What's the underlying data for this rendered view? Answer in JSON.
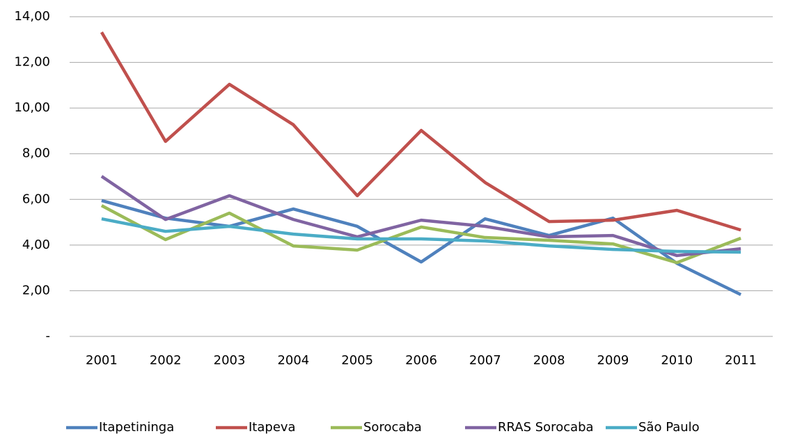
{
  "chart_data": {
    "type": "line",
    "categories": [
      "2001",
      "2002",
      "2003",
      "2004",
      "2005",
      "2006",
      "2007",
      "2008",
      "2009",
      "2010",
      "2011"
    ],
    "series": [
      {
        "name": "Itapetininga",
        "color": "#4f81bd",
        "values": [
          5.95,
          5.18,
          4.82,
          5.58,
          4.82,
          3.26,
          5.15,
          4.42,
          5.18,
          3.2,
          1.83
        ]
      },
      {
        "name": "Itapeva",
        "color": "#c0504d",
        "values": [
          13.32,
          8.54,
          11.04,
          9.27,
          6.16,
          9.02,
          6.74,
          5.03,
          5.09,
          5.52,
          4.66
        ]
      },
      {
        "name": "Sorocaba",
        "color": "#9bbb59",
        "values": [
          5.73,
          4.24,
          5.4,
          3.96,
          3.78,
          4.79,
          4.33,
          4.21,
          4.05,
          3.23,
          4.3
        ]
      },
      {
        "name": "RRAS Sorocaba",
        "color": "#8064a2",
        "values": [
          7.01,
          5.12,
          6.16,
          5.12,
          4.36,
          5.09,
          4.82,
          4.36,
          4.42,
          3.54,
          3.84
        ]
      },
      {
        "name": "São Paulo",
        "color": "#4bacc6",
        "values": [
          5.15,
          4.6,
          4.82,
          4.48,
          4.27,
          4.27,
          4.18,
          3.96,
          3.81,
          3.72,
          3.69
        ]
      }
    ],
    "ylim": [
      0,
      14
    ],
    "yticks": [
      {
        "value": 0,
        "label": "-"
      },
      {
        "value": 2,
        "label": "2,00"
      },
      {
        "value": 4,
        "label": "4,00"
      },
      {
        "value": 6,
        "label": "6,00"
      },
      {
        "value": 8,
        "label": "8,00"
      },
      {
        "value": 10,
        "label": "10,00"
      },
      {
        "value": 12,
        "label": "12,00"
      },
      {
        "value": 14,
        "label": "14,00"
      }
    ],
    "grid": true,
    "legend": "bottom"
  }
}
